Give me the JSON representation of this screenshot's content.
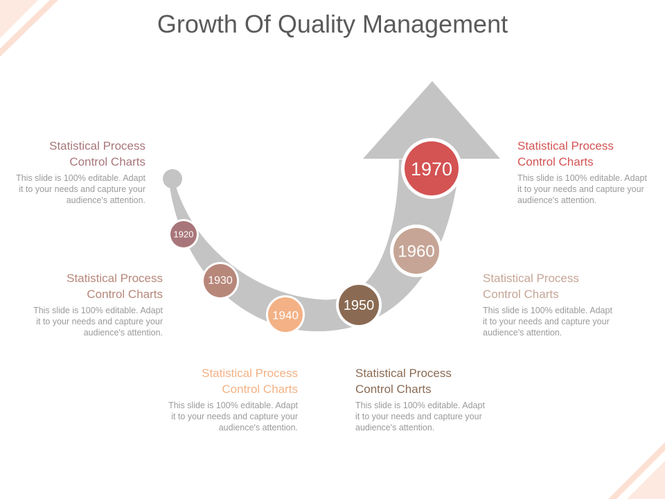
{
  "title": "Growth Of Quality Management",
  "colors": {
    "arrow": "#c4c4c4",
    "1920": "#a8767a",
    "1930": "#b7877a",
    "1940": "#f3b185",
    "1950": "#8a6a53",
    "1960": "#c6a596",
    "1970": "#d45353",
    "corner": "#fbe3d8"
  },
  "milestones": [
    {
      "year": "1920"
    },
    {
      "year": "1930"
    },
    {
      "year": "1940"
    },
    {
      "year": "1950"
    },
    {
      "year": "1960"
    },
    {
      "year": "1970"
    }
  ],
  "blocks": [
    {
      "heading": "Statistical Process Control Charts",
      "body": "This slide is 100% editable. Adapt it to your needs and capture your audience's attention.",
      "color": "#a8767a"
    },
    {
      "heading": "Statistical Process Control Charts",
      "body": "This slide is 100% editable. Adapt it to your needs and capture your audience's attention.",
      "color": "#b7877a"
    },
    {
      "heading": "Statistical Process Control Charts",
      "body": "This slide is 100% editable. Adapt it to your needs and capture your audience's attention.",
      "color": "#f3b185"
    },
    {
      "heading": "Statistical Process Control Charts",
      "body": "This slide is 100% editable. Adapt it to your needs and capture your audience's attention.",
      "color": "#8a6a53"
    },
    {
      "heading": "Statistical Process Control Charts",
      "body": "This slide is 100% editable. Adapt it to your needs and capture your audience's attention.",
      "color": "#c6a596"
    },
    {
      "heading": "Statistical Process Control Charts",
      "body": "This slide is 100% editable. Adapt it to your needs and capture your audience's attention.",
      "color": "#d45353"
    }
  ]
}
